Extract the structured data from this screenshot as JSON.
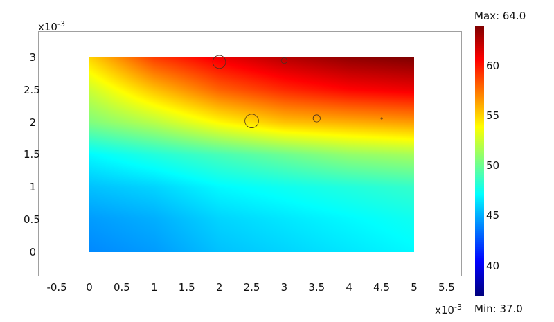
{
  "chart_data": {
    "type": "heatmap",
    "title": "",
    "xlabel": "",
    "ylabel": "",
    "x_multiplier": "x10",
    "x_multiplier_exp": "-3",
    "y_multiplier": "x10",
    "y_multiplier_exp": "-3",
    "xlim": [
      -0.8,
      5.9
    ],
    "ylim": [
      -0.4,
      3.4
    ],
    "x_ticks": [
      "-0.5",
      "0",
      "0.5",
      "1",
      "1.5",
      "2",
      "2.5",
      "3",
      "3.5",
      "4",
      "4.5",
      "5",
      "5.5"
    ],
    "y_ticks": [
      "0",
      "0.5",
      "1",
      "1.5",
      "2",
      "2.5",
      "3"
    ],
    "domain": {
      "x": [
        0,
        5
      ],
      "y": [
        0,
        3
      ]
    },
    "grid_x": [
      0,
      1,
      2,
      3,
      4,
      5
    ],
    "grid_y": [
      0,
      0.5,
      1,
      1.5,
      2,
      2.5,
      3
    ],
    "values": [
      [
        44,
        44.5,
        45.5,
        46,
        46.5,
        47
      ],
      [
        44.5,
        45,
        46,
        46.5,
        47,
        47.5
      ],
      [
        45.5,
        46,
        47,
        47.5,
        48,
        48.5
      ],
      [
        47,
        48,
        49,
        50,
        51,
        51.5
      ],
      [
        50.5,
        52,
        54,
        55.5,
        56,
        56.5
      ],
      [
        52.5,
        55.5,
        58,
        59.5,
        60.5,
        61
      ],
      [
        55,
        59,
        61,
        62.5,
        63.5,
        64
      ]
    ],
    "circles": [
      {
        "x": 2.0,
        "y": 2.93,
        "r": 0.1
      },
      {
        "x": 3.0,
        "y": 2.95,
        "r": 0.045
      },
      {
        "x": 2.5,
        "y": 2.02,
        "r": 0.105
      },
      {
        "x": 3.5,
        "y": 2.06,
        "r": 0.055
      },
      {
        "x": 4.5,
        "y": 2.06,
        "r": 0.012
      }
    ],
    "colormap": "jet",
    "colorbar": {
      "min": 37.0,
      "max": 64.0,
      "max_label": "Max: 64.0",
      "min_label": "Min: 37.0",
      "ticks": [
        "40",
        "45",
        "50",
        "55",
        "60"
      ]
    },
    "grid": false,
    "legend": "colorbar-right"
  }
}
